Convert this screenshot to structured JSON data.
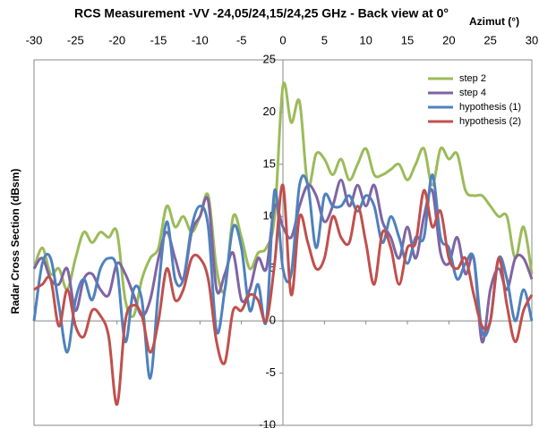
{
  "chart_data": {
    "type": "line",
    "title": "RCS Measurement  -VV -24,05/24,15/24,25 GHz - Back view at 0°",
    "x_label": "Azimut (°)",
    "y_label": "Radar Cross Section (dBsm)",
    "x": [
      -30,
      -29,
      -28,
      -27,
      -26,
      -25,
      -24,
      -23,
      -22,
      -21,
      -20,
      -19,
      -18,
      -17,
      -16,
      -15,
      -14,
      -13,
      -12,
      -11,
      -10,
      -9,
      -8,
      -7,
      -6,
      -5,
      -4,
      -3,
      -2,
      -1,
      0,
      1,
      2,
      3,
      4,
      5,
      6,
      7,
      8,
      9,
      10,
      11,
      12,
      13,
      14,
      15,
      16,
      17,
      18,
      19,
      20,
      21,
      22,
      23,
      24,
      25,
      26,
      27,
      28,
      29,
      30
    ],
    "series": [
      {
        "name": "step 2",
        "color": "#9bbb59",
        "values": [
          5,
          7,
          4.5,
          5,
          3,
          6,
          8.5,
          7.5,
          8.5,
          8,
          8.5,
          2,
          0.5,
          4,
          6,
          7,
          11,
          9,
          10,
          8.5,
          10,
          12,
          5,
          3,
          10,
          8,
          5,
          6.5,
          7,
          10,
          22.5,
          19,
          21,
          13,
          16,
          15.5,
          14,
          15.5,
          13.5,
          15,
          16.5,
          14,
          14,
          14.5,
          15,
          13.5,
          15,
          16.5,
          13,
          16.5,
          15.5,
          16,
          12.5,
          12,
          12,
          11,
          10,
          10,
          6,
          9,
          4.5
        ]
      },
      {
        "name": "step 4",
        "color": "#8064a2",
        "values": [
          5,
          6,
          4,
          3.5,
          5,
          1,
          4,
          4.5,
          3,
          2.5,
          5.5,
          4.5,
          2.5,
          0.5,
          2,
          6,
          8.5,
          6,
          4,
          8.5,
          10,
          11.5,
          3,
          4.5,
          6.5,
          2,
          3,
          6,
          5,
          11,
          9,
          8,
          11,
          13,
          12,
          9.5,
          11,
          13.5,
          11,
          13,
          11,
          13,
          9.5,
          8,
          6,
          9,
          6,
          10,
          12.5,
          6.5,
          5.5,
          8,
          4.5,
          6,
          -2,
          3,
          5,
          3,
          6,
          6,
          4
        ]
      },
      {
        "name": "hypothesis (1)",
        "color": "#4f81bd",
        "values": [
          0,
          5.5,
          6,
          1.5,
          -3,
          2,
          4,
          2,
          5,
          6,
          5,
          -2,
          3,
          2,
          -5.5,
          3,
          9.5,
          4,
          4,
          9,
          11,
          9,
          -1,
          3,
          9,
          7,
          1,
          3.5,
          0,
          12.5,
          5,
          4.5,
          13,
          13,
          7,
          12,
          11,
          11,
          12,
          10.5,
          12,
          11,
          7.5,
          10,
          8,
          5.5,
          8,
          8,
          14,
          8,
          7,
          4,
          5.5,
          6,
          -1,
          0,
          6,
          4,
          0,
          3,
          0
        ]
      },
      {
        "name": "hypothesis (2)",
        "color": "#c0504d",
        "values": [
          3,
          3.5,
          4,
          -0.5,
          3,
          -0.5,
          -1.5,
          1,
          0.5,
          -1.5,
          -8,
          0,
          1.5,
          0.5,
          -3,
          0,
          5,
          2,
          3,
          6,
          6,
          4,
          -2,
          -4,
          1,
          1,
          2.5,
          2,
          0,
          5.5,
          13,
          2.5,
          10,
          7.5,
          5,
          6,
          10,
          8,
          7.5,
          11,
          7.5,
          3.5,
          8.5,
          7,
          3.5,
          7,
          7.5,
          12.5,
          9,
          10.5,
          6,
          5,
          6,
          2.5,
          -0.5,
          0,
          6,
          1.5,
          -2,
          1,
          2.5
        ]
      }
    ],
    "xlim": [
      -30,
      30
    ],
    "xticks": [
      -30,
      -25,
      -20,
      -15,
      -10,
      -5,
      0,
      5,
      10,
      15,
      20,
      25,
      30
    ],
    "ylim": [
      -10,
      25
    ],
    "yticks": [
      -10,
      -5,
      0,
      5,
      10,
      15,
      20,
      25
    ],
    "legend": "upper right"
  }
}
